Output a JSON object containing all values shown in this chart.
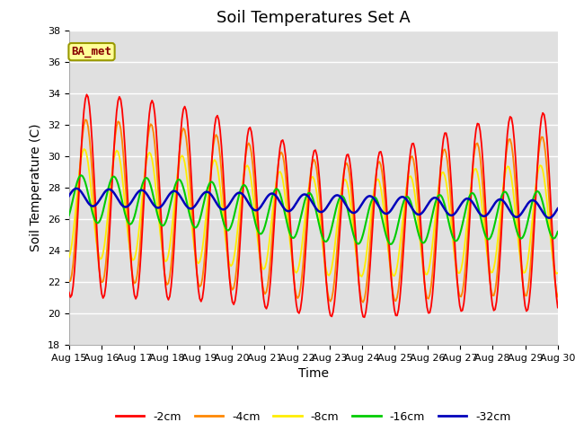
{
  "title": "Soil Temperatures Set A",
  "xlabel": "Time",
  "ylabel": "Soil Temperature (C)",
  "ylim": [
    18,
    38
  ],
  "yticks": [
    18,
    20,
    22,
    24,
    26,
    28,
    30,
    32,
    34,
    36,
    38
  ],
  "date_labels": [
    "Aug 15",
    "Aug 16",
    "Aug 17",
    "Aug 18",
    "Aug 19",
    "Aug 20",
    "Aug 21",
    "Aug 22",
    "Aug 23",
    "Aug 24",
    "Aug 25",
    "Aug 26",
    "Aug 27",
    "Aug 28",
    "Aug 29",
    "Aug 30"
  ],
  "colors": {
    "-2cm": "#ff0000",
    "-4cm": "#ff8800",
    "-8cm": "#ffee00",
    "-16cm": "#00cc00",
    "-32cm": "#0000bb"
  },
  "legend_labels": [
    "-2cm",
    "-4cm",
    "-8cm",
    "-16cm",
    "-32cm"
  ],
  "bg_color": "#e0e0e0",
  "annotation_text": "BA_met",
  "annotation_bg": "#ffff99",
  "annotation_border": "#999900",
  "annotation_text_color": "#880000",
  "title_fontsize": 13,
  "label_fontsize": 10,
  "tick_fontsize": 8
}
